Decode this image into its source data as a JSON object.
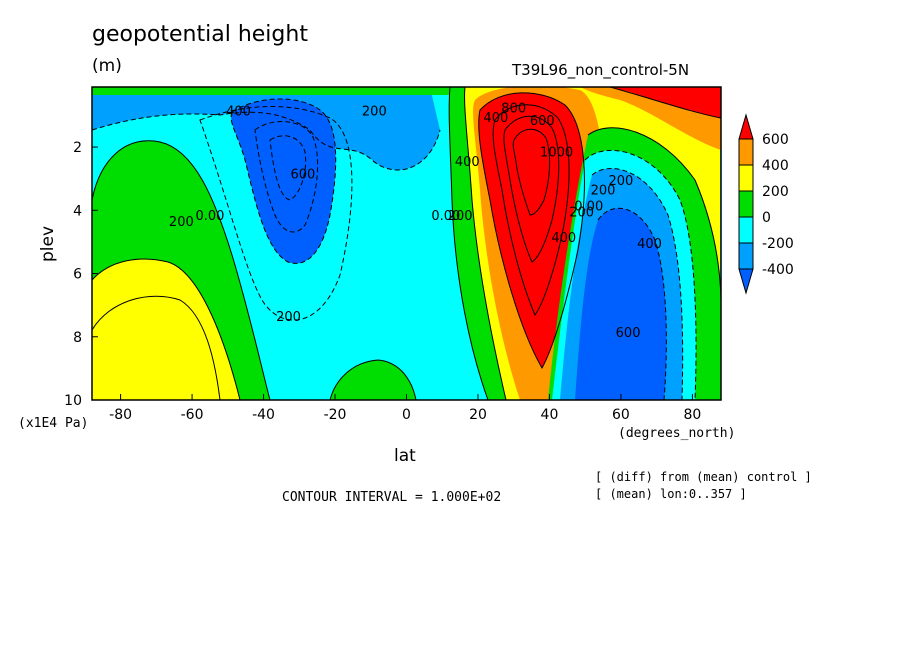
{
  "header": {
    "title": "geopotential height",
    "units": "(m)",
    "run_name": "T39L96_non_control-5N"
  },
  "footer": {
    "contour_interval": "CONTOUR INTERVAL = 1.000E+02",
    "note_1": "[ (diff) from (mean) control ]",
    "note_2": "[ (mean) lon:0..357 ]"
  },
  "chart_data": {
    "type": "heatmap",
    "title": "geopotential height",
    "subtitle": "T39L96_non_control-5N",
    "xlabel": "lat",
    "x_units": "(degrees_north)",
    "ylabel": "plev",
    "y_units": "(x1E4 Pa)",
    "xlim": [
      -88,
      88
    ],
    "ylim": [
      10,
      0.1
    ],
    "y_inverted": true,
    "x_ticks": [
      "-80",
      "-60",
      "-40",
      "-20",
      "0",
      "20",
      "40",
      "60",
      "80"
    ],
    "y_ticks": [
      "2",
      "4",
      "6",
      "8",
      "10"
    ],
    "contour_interval": 100,
    "colorbar": {
      "labels": [
        "600",
        "400",
        "200",
        "0",
        "-200",
        "-400"
      ],
      "colors": [
        "#ff0000",
        "#ff9900",
        "#ffff00",
        "#00dd00",
        "#00ffff",
        "#00a0ff",
        "#0060ff"
      ]
    },
    "features": [
      {
        "type": "low",
        "lat": -33,
        "plev": 2.5,
        "approx_value": -600,
        "labels": [
          "400",
          "600",
          "200"
        ]
      },
      {
        "type": "high",
        "lat": -62,
        "plev": 7.5,
        "approx_value": 250,
        "labels": [
          "200",
          "0.00"
        ]
      },
      {
        "type": "high",
        "lat": 33,
        "plev": 2.5,
        "approx_value": 1200,
        "labels": [
          "400",
          "200",
          "0.00",
          "600",
          "800",
          "1000",
          "400"
        ]
      },
      {
        "type": "low",
        "lat": 62,
        "plev": 6.5,
        "approx_value": -700,
        "labels": [
          "200",
          "400",
          "600",
          "0.00"
        ]
      },
      {
        "type": "high",
        "lat": 75,
        "plev": 0.5,
        "approx_value": 900,
        "labels": []
      },
      {
        "type": "zero-line",
        "lat": 12,
        "plev": 4.2,
        "approx_value": 0,
        "labels": [
          "0.00",
          "200",
          "400"
        ]
      }
    ],
    "in_plot_labels": [
      {
        "text": "400",
        "lat": -47,
        "plev": 1.0
      },
      {
        "text": "200",
        "lat": -9,
        "plev": 1.0
      },
      {
        "text": "600",
        "lat": -29,
        "plev": 3.0
      },
      {
        "text": "200",
        "lat": -63,
        "plev": 4.5
      },
      {
        "text": "0.00",
        "lat": -55,
        "plev": 4.3
      },
      {
        "text": "200",
        "lat": -33,
        "plev": 7.5
      },
      {
        "text": "400",
        "lat": 17,
        "plev": 2.6
      },
      {
        "text": "0.00",
        "lat": 11,
        "plev": 4.3
      },
      {
        "text": "200",
        "lat": 15,
        "plev": 4.3
      },
      {
        "text": "400",
        "lat": 25,
        "plev": 1.2
      },
      {
        "text": "800",
        "lat": 30,
        "plev": 0.9
      },
      {
        "text": "600",
        "lat": 38,
        "plev": 1.3
      },
      {
        "text": "1000",
        "lat": 42,
        "plev": 2.3
      },
      {
        "text": "400",
        "lat": 44,
        "plev": 5.0
      },
      {
        "text": "200",
        "lat": 49,
        "plev": 4.2
      },
      {
        "text": "0.00",
        "lat": 51,
        "plev": 4.0
      },
      {
        "text": "200",
        "lat": 55,
        "plev": 3.5
      },
      {
        "text": "200",
        "lat": 60,
        "plev": 3.2
      },
      {
        "text": "400",
        "lat": 68,
        "plev": 5.2
      },
      {
        "text": "600",
        "lat": 62,
        "plev": 8.0
      }
    ]
  }
}
